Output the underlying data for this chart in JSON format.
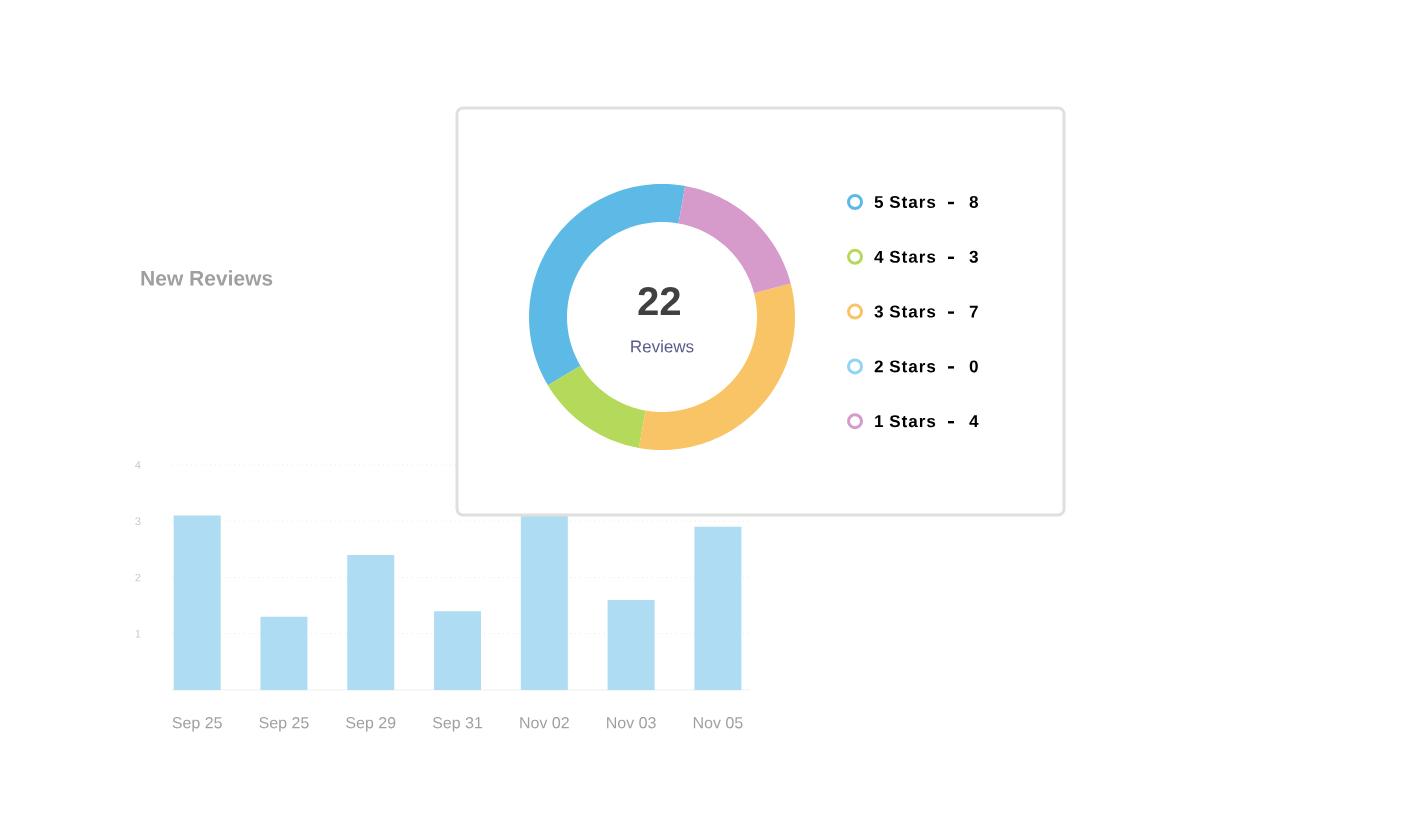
{
  "chart_data": [
    {
      "type": "bar",
      "title": "New Reviews",
      "categories": [
        "Sep 25",
        "Sep 25",
        "Sep 29",
        "Sep 31",
        "Nov 02",
        "Nov 03",
        "Nov 05"
      ],
      "values": [
        3.1,
        1.3,
        2.4,
        1.4,
        3.1,
        1.6,
        2.9
      ],
      "color": "#aedcf2",
      "ylim": [
        0,
        4
      ],
      "yticks": [
        1,
        2,
        3,
        4
      ],
      "grid": "y"
    },
    {
      "type": "donut",
      "categories": [
        "5 Stars",
        "4 Stars",
        "3 Stars",
        "2 Stars",
        "1 Stars"
      ],
      "values": [
        8,
        3,
        7,
        0,
        4
      ],
      "colors": [
        "#5db9e5",
        "#b5d95a",
        "#f9c466",
        "#8fd3f5",
        "#d69acb"
      ],
      "value_labels": [
        "8",
        "3",
        "7",
        "0",
        "4"
      ],
      "legend": "right",
      "annotations": [
        "22",
        "Reviews"
      ]
    }
  ]
}
